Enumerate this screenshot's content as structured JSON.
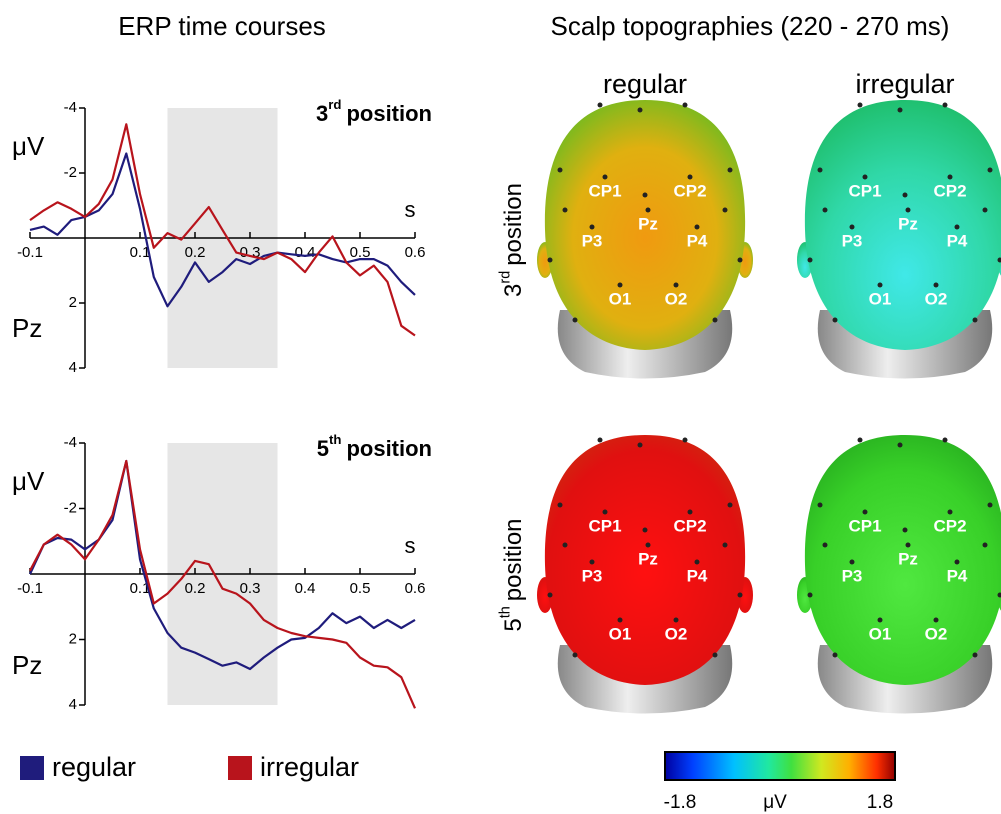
{
  "chart_data": [
    {
      "type": "line",
      "title": "ERP time courses",
      "ylabel": "μV",
      "channel": "Pz",
      "xlabel": "s",
      "annotation": {
        "number": "3",
        "sup": "rd",
        "text": "position"
      },
      "x": [
        -0.1,
        -0.075,
        -0.05,
        -0.025,
        0,
        0.025,
        0.05,
        0.075,
        0.1,
        0.125,
        0.15,
        0.175,
        0.2,
        0.225,
        0.25,
        0.275,
        0.3,
        0.325,
        0.35,
        0.375,
        0.4,
        0.425,
        0.45,
        0.475,
        0.5,
        0.525,
        0.55,
        0.575,
        0.6
      ],
      "xlim": [
        -0.1,
        0.6
      ],
      "xticks": [
        -0.1,
        0.1,
        0.2,
        0.3,
        0.4,
        0.5,
        0.6
      ],
      "ylim": [
        4,
        -4
      ],
      "yticks": [
        -4,
        -2,
        2,
        4
      ],
      "highlight": [
        0.15,
        0.35
      ],
      "series": [
        {
          "name": "regular",
          "color": "#1f1c7c",
          "values": [
            -0.25,
            -0.35,
            -0.1,
            -0.55,
            -0.65,
            -0.85,
            -1.35,
            -2.6,
            -0.9,
            1.2,
            2.1,
            1.5,
            0.75,
            1.35,
            1.05,
            0.65,
            0.8,
            0.55,
            0.45,
            0.5,
            0.55,
            0.5,
            0.65,
            0.75,
            0.65,
            0.65,
            0.85,
            1.35,
            1.75
          ]
        },
        {
          "name": "irregular",
          "color": "#b8141c",
          "values": [
            -0.55,
            -0.85,
            -1.1,
            -0.9,
            -0.65,
            -1.05,
            -1.8,
            -3.5,
            -1.35,
            0.3,
            -0.15,
            0.05,
            -0.45,
            -0.95,
            -0.25,
            0.45,
            0.55,
            0.65,
            0.45,
            0.65,
            1.05,
            0.45,
            -0.05,
            0.75,
            1.15,
            0.85,
            1.35,
            2.7,
            3.0
          ]
        }
      ]
    },
    {
      "type": "line",
      "ylabel": "μV",
      "channel": "Pz",
      "xlabel": "s",
      "annotation": {
        "number": "5",
        "sup": "th",
        "text": "position"
      },
      "x": [
        -0.1,
        -0.075,
        -0.05,
        -0.025,
        0,
        0.025,
        0.05,
        0.075,
        0.1,
        0.125,
        0.15,
        0.175,
        0.2,
        0.225,
        0.25,
        0.275,
        0.3,
        0.325,
        0.35,
        0.375,
        0.4,
        0.425,
        0.45,
        0.475,
        0.5,
        0.525,
        0.55,
        0.575,
        0.6
      ],
      "xlim": [
        -0.1,
        0.6
      ],
      "xticks": [
        -0.1,
        0.1,
        0.2,
        0.3,
        0.4,
        0.5,
        0.6
      ],
      "ylim": [
        4,
        -4
      ],
      "yticks": [
        -4,
        -2,
        2,
        4
      ],
      "highlight": [
        0.15,
        0.35
      ],
      "series": [
        {
          "name": "regular",
          "color": "#1f1c7c",
          "values": [
            0,
            -0.9,
            -1.1,
            -1.05,
            -0.75,
            -1.05,
            -1.65,
            -3.45,
            -0.45,
            1.05,
            1.8,
            2.25,
            2.4,
            2.6,
            2.8,
            2.7,
            2.9,
            2.55,
            2.25,
            2.0,
            1.95,
            1.65,
            1.2,
            1.5,
            1.3,
            1.65,
            1.4,
            1.65,
            1.4
          ]
        },
        {
          "name": "irregular",
          "color": "#b8141c",
          "values": [
            -0.1,
            -0.9,
            -1.2,
            -0.9,
            -0.45,
            -1.05,
            -1.8,
            -3.45,
            -0.75,
            0.9,
            0.6,
            0.15,
            -0.4,
            -0.3,
            0.45,
            0.6,
            0.9,
            1.4,
            1.65,
            1.8,
            1.9,
            1.95,
            2.0,
            2.1,
            2.55,
            2.8,
            2.85,
            3.15,
            4.1
          ]
        }
      ]
    }
  ],
  "topographies": {
    "title": "Scalp topographies (220 - 270 ms)",
    "columns": [
      "regular",
      "irregular"
    ],
    "rows": [
      {
        "number": "3",
        "sup": "rd",
        "text": "position"
      },
      {
        "number": "5",
        "sup": "th",
        "text": "position"
      }
    ],
    "electrodes": [
      "CP1",
      "CP2",
      "Pz",
      "P3",
      "P4",
      "O1",
      "O2"
    ],
    "colorbar": {
      "min": -1.8,
      "max": 1.8,
      "unit": "μV"
    }
  }
}
